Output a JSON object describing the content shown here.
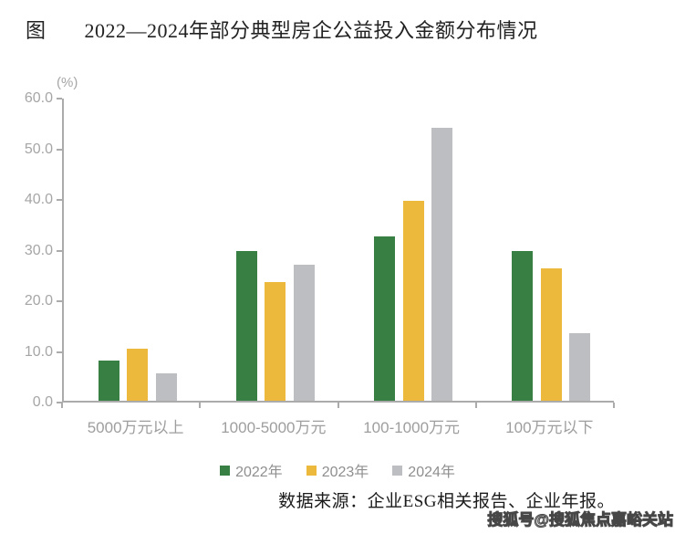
{
  "figure": {
    "prefix": "图",
    "title": "2022—2024年部分典型房企公益投入金额分布情况"
  },
  "chart_data": {
    "type": "bar",
    "title": "2022—2024年部分典型房企公益投入金额分布情况",
    "unit_label": "(%)",
    "xlabel": "",
    "ylabel": "(%)",
    "categories": [
      "5000万元以上",
      "1000-5000万元",
      "100-1000万元",
      "100万元以下"
    ],
    "series": [
      {
        "name": "2022年",
        "color": "#377f42",
        "values": [
          7.9,
          29.5,
          32.4,
          29.5
        ]
      },
      {
        "name": "2023年",
        "color": "#ecb93c",
        "values": [
          10.3,
          23.5,
          39.4,
          26.2
        ]
      },
      {
        "name": "2024年",
        "color": "#bdbec2",
        "values": [
          5.4,
          26.8,
          53.9,
          13.4
        ]
      }
    ],
    "ylim": [
      0,
      60
    ],
    "ytick_step": 10,
    "yticks": [
      "0.0",
      "10.0",
      "20.0",
      "30.0",
      "40.0",
      "50.0",
      "60.0"
    ],
    "grid": false,
    "legend_position": "bottom"
  },
  "source": {
    "text": "数据来源：企业ESG相关报告、企业年报。"
  },
  "watermark": {
    "text": "搜狐号@搜狐焦点嘉峪关站"
  },
  "colors": {
    "axis_line": "#ababab",
    "ytick_label": "#a6a6a6",
    "category_label": "#9e9e9e",
    "legend_label": "#8f8f8f",
    "title_text": "#222222",
    "source_text": "#1b1b1b"
  }
}
